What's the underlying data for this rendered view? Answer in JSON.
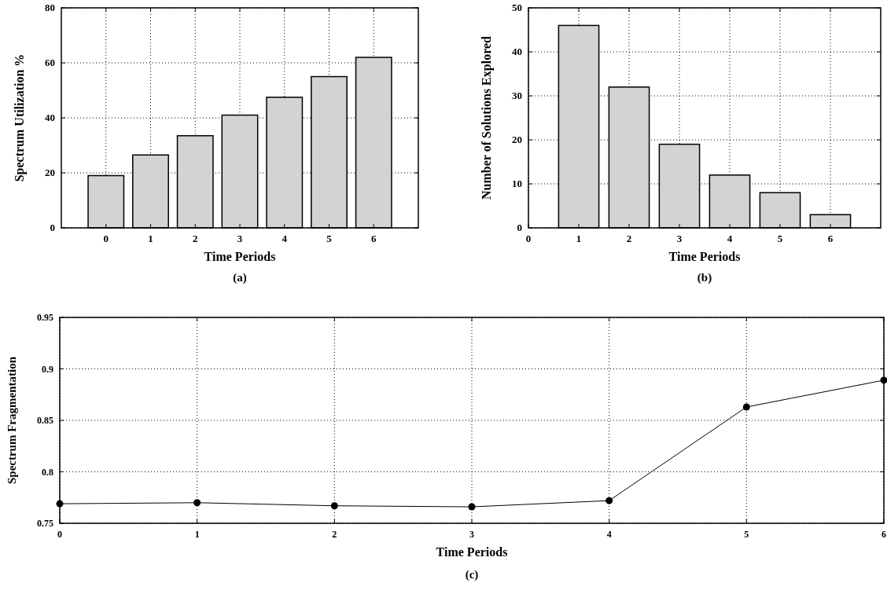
{
  "chart_data": [
    {
      "type": "bar",
      "xlabel": "Time Periods",
      "ylabel": "Spectrum Utilization %",
      "x": [
        0,
        1,
        2,
        3,
        4,
        5,
        6
      ],
      "xlim": [
        -1,
        7
      ],
      "xticks": [
        0,
        1,
        2,
        3,
        4,
        5,
        6
      ],
      "ylim": [
        0,
        80
      ],
      "yticks": [
        0,
        20,
        40,
        60,
        80
      ],
      "grid": true,
      "color": "#d3d3d3",
      "values": [
        19,
        26.5,
        33.5,
        41,
        47.5,
        55,
        62
      ],
      "annotations": [
        "(a)"
      ]
    },
    {
      "type": "bar",
      "xlabel": "Time Periods",
      "ylabel": "Number of Solutions Explored",
      "x": [
        1,
        2,
        3,
        4,
        5,
        6
      ],
      "xlim": [
        0,
        7
      ],
      "xticks": [
        0,
        1,
        2,
        3,
        4,
        5,
        6
      ],
      "ylim": [
        0,
        50
      ],
      "yticks": [
        0,
        10,
        20,
        30,
        40,
        50
      ],
      "grid": true,
      "color": "#d3d3d3",
      "values": [
        46,
        32,
        19,
        12,
        8,
        3
      ],
      "annotations": [
        "(b)"
      ]
    },
    {
      "type": "line",
      "xlabel": "Time Periods",
      "ylabel": "Spectrum Fragmentation",
      "x": [
        0,
        1,
        2,
        3,
        4,
        5,
        6
      ],
      "xlim": [
        0,
        6
      ],
      "xticks": [
        0,
        1,
        2,
        3,
        4,
        5,
        6
      ],
      "ylim": [
        0.75,
        0.95
      ],
      "yticks": [
        0.75,
        0.8,
        0.85,
        0.9,
        0.95
      ],
      "grid": true,
      "marker": "circle",
      "color": "#000000",
      "values": [
        0.769,
        0.77,
        0.767,
        0.766,
        0.772,
        0.863,
        0.889
      ],
      "annotations": [
        "(c)"
      ]
    }
  ]
}
